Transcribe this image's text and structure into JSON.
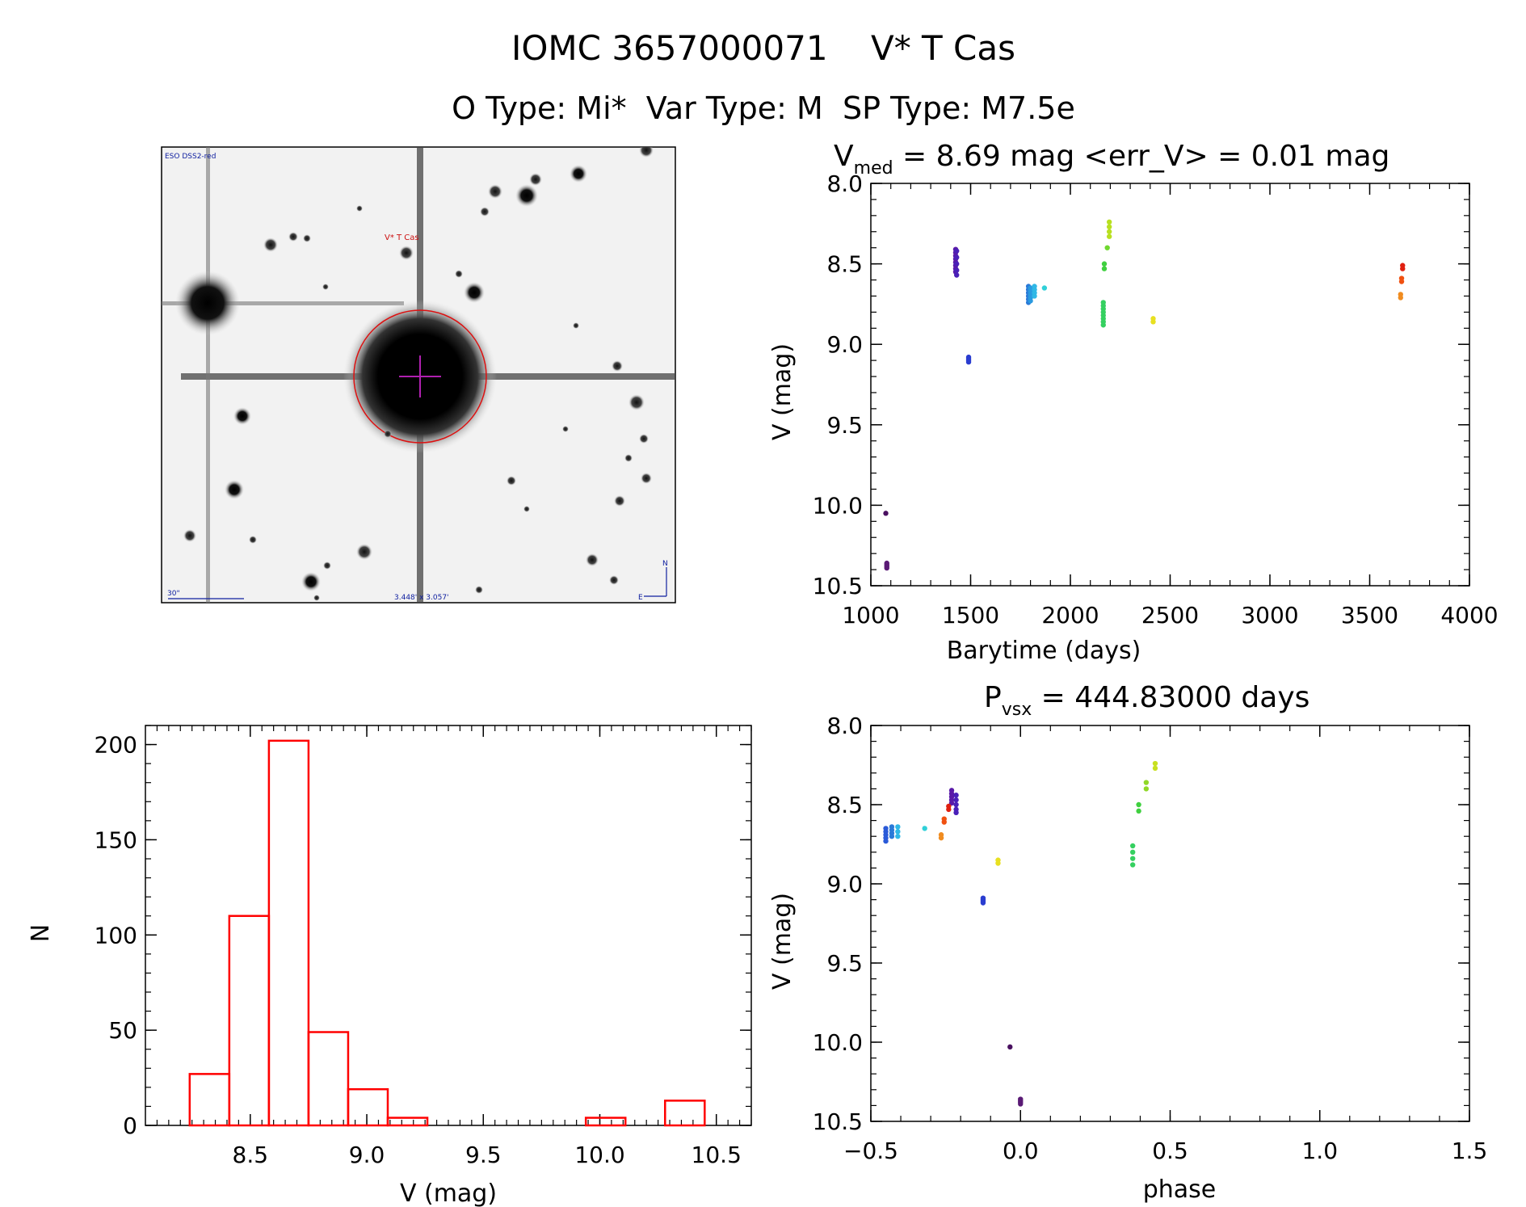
{
  "header": {
    "title_line1": "IOMC 3657000071    V* T Cas",
    "title_line2": "O Type: Mi*  Var Type: M  SP Type: M7.5e"
  },
  "image_panel": {
    "survey_label": "ESO DSS2-red",
    "target_label": "V* T Cas",
    "scale_label": "30\"",
    "fov_label": "3.448' x 3.057'",
    "compass_n": "N",
    "compass_e": "E"
  },
  "chart_data": [
    {
      "id": "lightcurve",
      "type": "scatter",
      "title_main": "V",
      "title_sub": "med",
      "title_rest": " = 8.69 mag <err_V> = 0.01 mag",
      "xlabel": "Barytime (days)",
      "ylabel": "V (mag)",
      "xlim": [
        1000,
        4000
      ],
      "ylim": [
        10.5,
        8.0
      ],
      "y_inverted": true,
      "xticks": [
        "1000",
        "1500",
        "2000",
        "2500",
        "3000",
        "3500",
        "4000"
      ],
      "yticks": [
        "8.0",
        "8.5",
        "9.0",
        "9.5",
        "10.0",
        "10.5"
      ],
      "clusters": [
        {
          "x": 1075,
          "y": [
            10.05
          ],
          "color": "#4a1060"
        },
        {
          "x": 1080,
          "y": [
            10.36,
            10.37,
            10.38,
            10.39
          ],
          "color": "#5a1a75"
        },
        {
          "x": 1425,
          "y": [
            8.41,
            8.43,
            8.45,
            8.47,
            8.49,
            8.51,
            8.53,
            8.55
          ],
          "color": "#5a1aa8"
        },
        {
          "x": 1430,
          "y": [
            8.42,
            8.46,
            8.5,
            8.54,
            8.57
          ],
          "color": "#4a20b8"
        },
        {
          "x": 1490,
          "y": [
            9.08,
            9.09,
            9.1,
            9.11
          ],
          "color": "#2a3dd0"
        },
        {
          "x": 1790,
          "y": [
            8.64,
            8.66,
            8.68,
            8.7,
            8.72,
            8.74
          ],
          "color": "#2a7ad8"
        },
        {
          "x": 1800,
          "y": [
            8.65,
            8.67,
            8.69,
            8.71,
            8.73
          ],
          "color": "#2a9ae0"
        },
        {
          "x": 1820,
          "y": [
            8.64,
            8.66,
            8.68,
            8.7
          ],
          "color": "#30b8e6"
        },
        {
          "x": 1870,
          "y": [
            8.65
          ],
          "color": "#30d0d8"
        },
        {
          "x": 2165,
          "y": [
            8.74,
            8.76,
            8.78,
            8.8,
            8.82,
            8.84,
            8.86,
            8.88
          ],
          "color": "#35d060"
        },
        {
          "x": 2170,
          "y": [
            8.5,
            8.53
          ],
          "color": "#40d040"
        },
        {
          "x": 2185,
          "y": [
            8.4
          ],
          "color": "#70d830"
        },
        {
          "x": 2195,
          "y": [
            8.24,
            8.27,
            8.3,
            8.33
          ],
          "color": "#b8e020"
        },
        {
          "x": 2415,
          "y": [
            8.84,
            8.86
          ],
          "color": "#e8e020"
        },
        {
          "x": 3665,
          "y": [
            8.51,
            8.53
          ],
          "color": "#e02010"
        },
        {
          "x": 3660,
          "y": [
            8.59,
            8.61
          ],
          "color": "#f05010"
        },
        {
          "x": 3655,
          "y": [
            8.69,
            8.71
          ],
          "color": "#f08c20"
        }
      ]
    },
    {
      "id": "histogram",
      "type": "bar",
      "xlabel": "V (mag)",
      "ylabel": "N",
      "xlim": [
        8.05,
        10.65
      ],
      "ylim": [
        0,
        210
      ],
      "xticks": [
        "8.5",
        "9.0",
        "9.5",
        "10.0",
        "10.5"
      ],
      "yticks": [
        "0",
        "50",
        "100",
        "150",
        "200"
      ],
      "bin_width": 0.17,
      "bin_left": [
        8.24,
        8.41,
        8.58,
        8.75,
        8.92,
        9.09,
        9.26,
        9.43,
        9.6,
        9.77,
        9.94,
        10.11,
        10.28
      ],
      "counts": [
        27,
        110,
        202,
        49,
        19,
        4,
        0,
        0,
        0,
        0,
        4,
        0,
        13
      ],
      "color": "#ff0000"
    },
    {
      "id": "phased",
      "type": "scatter",
      "title_main": "P",
      "title_sub": "vsx",
      "title_rest": " = 444.83000 days",
      "xlabel": "phase",
      "ylabel": "V (mag)",
      "xlim": [
        -0.5,
        1.5
      ],
      "ylim": [
        10.5,
        8.0
      ],
      "y_inverted": true,
      "xticks": [
        "−0.5",
        "0.0",
        "0.5",
        "1.0",
        "1.5"
      ],
      "yticks": [
        "8.0",
        "8.5",
        "9.0",
        "9.5",
        "10.0",
        "10.5"
      ],
      "clusters": [
        {
          "x": -0.035,
          "y": [
            10.03
          ],
          "color": "#4a1060"
        },
        {
          "x": 0.0,
          "y": [
            10.36,
            10.37,
            10.38,
            10.39
          ],
          "color": "#5a1a75"
        },
        {
          "x": -0.23,
          "y": [
            8.41,
            8.43,
            8.45,
            8.47,
            8.49
          ],
          "color": "#5a1aa8"
        },
        {
          "x": -0.215,
          "y": [
            8.44,
            8.47,
            8.5,
            8.53,
            8.55
          ],
          "color": "#4a20b8"
        },
        {
          "x": -0.125,
          "y": [
            9.09,
            9.1,
            9.11,
            9.12
          ],
          "color": "#2a3dd0"
        },
        {
          "x": -0.45,
          "y": [
            8.65,
            8.67,
            8.69,
            8.71,
            8.73
          ],
          "color": "#2a5ad8"
        },
        {
          "x": -0.43,
          "y": [
            8.64,
            8.66,
            8.68,
            8.7
          ],
          "color": "#2a7ad8"
        },
        {
          "x": -0.41,
          "y": [
            8.64,
            8.67,
            8.7
          ],
          "color": "#30b8e6"
        },
        {
          "x": -0.32,
          "y": [
            8.65
          ],
          "color": "#30d0d8"
        },
        {
          "x": 0.375,
          "y": [
            8.76,
            8.8,
            8.84,
            8.88
          ],
          "color": "#35d060"
        },
        {
          "x": 0.395,
          "y": [
            8.5,
            8.54
          ],
          "color": "#40d040"
        },
        {
          "x": 0.42,
          "y": [
            8.36,
            8.4
          ],
          "color": "#90d828"
        },
        {
          "x": 0.45,
          "y": [
            8.24,
            8.27
          ],
          "color": "#c8e020"
        },
        {
          "x": -0.075,
          "y": [
            8.85,
            8.87
          ],
          "color": "#e8e020"
        },
        {
          "x": -0.24,
          "y": [
            8.51,
            8.53
          ],
          "color": "#e02010"
        },
        {
          "x": -0.255,
          "y": [
            8.59,
            8.61
          ],
          "color": "#f05010"
        },
        {
          "x": -0.265,
          "y": [
            8.69,
            8.71
          ],
          "color": "#f08c20"
        }
      ]
    }
  ]
}
